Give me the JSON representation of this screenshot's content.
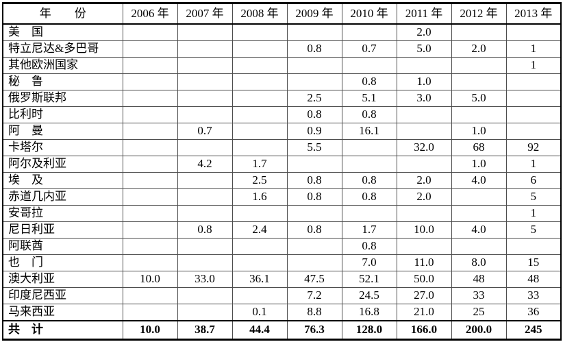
{
  "colors": {
    "background": "#ffffff",
    "text": "#000000",
    "outer_border": "#000000",
    "grid_line": "#4d4d4d"
  },
  "table": {
    "columns": [
      "年　　份",
      "2006 年",
      "2007 年",
      "2008 年",
      "2009 年",
      "2010 年",
      "2011 年",
      "2012 年",
      "2013 年"
    ],
    "rows": [
      {
        "label": "美　国",
        "values": [
          "",
          "",
          "",
          "",
          "",
          "2.0",
          "",
          ""
        ]
      },
      {
        "label": "特立尼达&多巴哥",
        "values": [
          "",
          "",
          "",
          "0.8",
          "0.7",
          "5.0",
          "2.0",
          "1"
        ]
      },
      {
        "label": "其他欧洲国家",
        "values": [
          "",
          "",
          "",
          "",
          "",
          "",
          "",
          "1"
        ]
      },
      {
        "label": "秘　鲁",
        "values": [
          "",
          "",
          "",
          "",
          "0.8",
          "1.0",
          "",
          ""
        ]
      },
      {
        "label": "俄罗斯联邦",
        "values": [
          "",
          "",
          "",
          "2.5",
          "5.1",
          "3.0",
          "5.0",
          ""
        ]
      },
      {
        "label": "比利时",
        "values": [
          "",
          "",
          "",
          "0.8",
          "0.8",
          "",
          "",
          ""
        ]
      },
      {
        "label": "阿　曼",
        "values": [
          "",
          "0.7",
          "",
          "0.9",
          "16.1",
          "",
          "1.0",
          ""
        ]
      },
      {
        "label": "卡塔尔",
        "values": [
          "",
          "",
          "",
          "5.5",
          "",
          "32.0",
          "68",
          "92"
        ]
      },
      {
        "label": "阿尔及利亚",
        "values": [
          "",
          "4.2",
          "1.7",
          "",
          "",
          "",
          "1.0",
          "1"
        ]
      },
      {
        "label": "埃　及",
        "values": [
          "",
          "",
          "2.5",
          "0.8",
          "0.8",
          "2.0",
          "4.0",
          "6"
        ]
      },
      {
        "label": "赤道几内亚",
        "values": [
          "",
          "",
          "1.6",
          "0.8",
          "0.8",
          "2.0",
          "",
          "5"
        ]
      },
      {
        "label": "安哥拉",
        "values": [
          "",
          "",
          "",
          "",
          "",
          "",
          "",
          "1"
        ]
      },
      {
        "label": "尼日利亚",
        "values": [
          "",
          "0.8",
          "2.4",
          "0.8",
          "1.7",
          "10.0",
          "4.0",
          "5"
        ]
      },
      {
        "label": "阿联酋",
        "values": [
          "",
          "",
          "",
          "",
          "0.8",
          "",
          "",
          ""
        ]
      },
      {
        "label": "也　门",
        "values": [
          "",
          "",
          "",
          "",
          "7.0",
          "11.0",
          "8.0",
          "15"
        ]
      },
      {
        "label": "澳大利亚",
        "values": [
          "10.0",
          "33.0",
          "36.1",
          "47.5",
          "52.1",
          "50.0",
          "48",
          "48"
        ]
      },
      {
        "label": "印度尼西亚",
        "values": [
          "",
          "",
          "",
          "7.2",
          "24.5",
          "27.0",
          "33",
          "33"
        ]
      },
      {
        "label": "马来西亚",
        "values": [
          "",
          "",
          "0.1",
          "8.8",
          "16.8",
          "21.0",
          "25",
          "36"
        ]
      },
      {
        "label": "共　计",
        "values": [
          "10.0",
          "38.7",
          "44.4",
          "76.3",
          "128.0",
          "166.0",
          "200.0",
          "245"
        ],
        "bold": true
      }
    ]
  }
}
